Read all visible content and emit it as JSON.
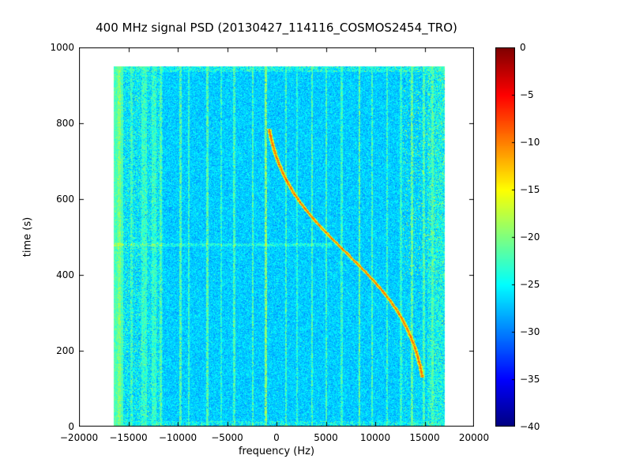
{
  "figure": {
    "background": "#ffffff",
    "text_color": "#000000"
  },
  "chart_data": {
    "type": "heatmap",
    "title": "400 MHz signal PSD (20130427_114116_COSMOS2454_TRO)",
    "xlabel": "frequency (Hz)",
    "ylabel": "time (s)",
    "xlim": [
      -20000,
      20000
    ],
    "ylim": [
      0,
      1000
    ],
    "xticks": [
      -20000,
      -15000,
      -10000,
      -5000,
      0,
      5000,
      10000,
      15000,
      20000
    ],
    "yticks": [
      0,
      200,
      400,
      600,
      800,
      1000
    ],
    "colormap": "jet",
    "grid": false,
    "colorbar": {
      "position": "right",
      "vmin": -40,
      "vmax": 0,
      "ticks": [
        0,
        -5,
        -10,
        -15,
        -20,
        -25,
        -30,
        -35,
        -40
      ]
    },
    "data_extent": {
      "freq_hz": [
        -16500,
        17000
      ],
      "time_s": [
        0,
        950
      ]
    },
    "noise_floor_db": -27,
    "bands": {
      "left_solid": {
        "freq_below": -15550,
        "level_db": -22,
        "density": 1.0
      },
      "left_speckle": {
        "freq_below": -11500,
        "level_db": -23.5,
        "density": 0.4
      },
      "right_mid_speckle": {
        "freq_above": 12500,
        "level_db": -23.5,
        "density": 0.12
      },
      "right_speckle": {
        "freq_above": 15300,
        "level_db": -23,
        "density": 0.55
      },
      "right_hot_speckle": {
        "freq_above": 12800,
        "time_above": 400,
        "level_db": -17.5,
        "density": 0.04
      },
      "top_speckle": {
        "time_above": 935,
        "level_db": -23.5,
        "density": 0.6
      },
      "bottom_speckle": {
        "time_below": 15,
        "level_db": -23.5,
        "density": 0.45
      }
    },
    "horizontal_line": {
      "time_s": 479,
      "boost_db": 3.5,
      "freq_max_hz": 5600
    },
    "rfi_lines": [
      {
        "freq_hz": -15950,
        "level_db": -20.0,
        "halfwidth_hz": 150
      },
      {
        "freq_hz": -14700,
        "level_db": -22.5,
        "halfwidth_hz": 120
      },
      {
        "freq_hz": -13400,
        "level_db": -22.8,
        "halfwidth_hz": 300
      },
      {
        "freq_hz": -12400,
        "level_db": -23.0,
        "halfwidth_hz": 200
      },
      {
        "freq_hz": -11700,
        "level_db": -22.0,
        "halfwidth_hz": 100
      },
      {
        "freq_hz": -9700,
        "level_db": -21.5,
        "halfwidth_hz": 120
      },
      {
        "freq_hz": -8900,
        "level_db": -22.5,
        "halfwidth_hz": 90
      },
      {
        "freq_hz": -7000,
        "level_db": -21.5,
        "halfwidth_hz": 110
      },
      {
        "freq_hz": -5600,
        "level_db": -23.0,
        "halfwidth_hz": 80
      },
      {
        "freq_hz": -4300,
        "level_db": -22.0,
        "halfwidth_hz": 100
      },
      {
        "freq_hz": -2400,
        "level_db": -21.8,
        "halfwidth_hz": 90
      },
      {
        "freq_hz": -1050,
        "level_db": -19.5,
        "halfwidth_hz": 120
      },
      {
        "freq_hz": 950,
        "level_db": -22.0,
        "halfwidth_hz": 90
      },
      {
        "freq_hz": 2100,
        "level_db": -23.0,
        "halfwidth_hz": 80
      },
      {
        "freq_hz": 3600,
        "level_db": -21.8,
        "halfwidth_hz": 100
      },
      {
        "freq_hz": 5050,
        "level_db": -22.0,
        "halfwidth_hz": 90
      },
      {
        "freq_hz": 6600,
        "level_db": -22.5,
        "halfwidth_hz": 90
      },
      {
        "freq_hz": 8400,
        "level_db": -20.8,
        "halfwidth_hz": 110
      },
      {
        "freq_hz": 9700,
        "level_db": -22.0,
        "halfwidth_hz": 90
      },
      {
        "freq_hz": 11200,
        "level_db": -22.5,
        "halfwidth_hz": 90
      },
      {
        "freq_hz": 12600,
        "level_db": -23.0,
        "halfwidth_hz": 80
      },
      {
        "freq_hz": 13700,
        "level_db": -21.0,
        "halfwidth_hz": 110
      },
      {
        "freq_hz": 14900,
        "level_db": -21.8,
        "halfwidth_hz": 100
      },
      {
        "freq_hz": 15800,
        "level_db": -22.0,
        "halfwidth_hz": 100
      }
    ],
    "doppler_track": {
      "label": "satellite Doppler S-curve",
      "level_db": -10,
      "halo_level_db": -16,
      "points": [
        {
          "t": 130,
          "f": 14790
        },
        {
          "t": 135,
          "f": 14750
        },
        {
          "t": 160,
          "f": 14550
        },
        {
          "t": 185,
          "f": 14290
        },
        {
          "t": 210,
          "f": 13990
        },
        {
          "t": 235,
          "f": 13620
        },
        {
          "t": 260,
          "f": 13200
        },
        {
          "t": 285,
          "f": 12690
        },
        {
          "t": 310,
          "f": 12100
        },
        {
          "t": 335,
          "f": 11420
        },
        {
          "t": 360,
          "f": 10660
        },
        {
          "t": 385,
          "f": 9820
        },
        {
          "t": 410,
          "f": 8920
        },
        {
          "t": 435,
          "f": 7970
        },
        {
          "t": 460,
          "f": 7000
        },
        {
          "t": 485,
          "f": 6030
        },
        {
          "t": 510,
          "f": 5080
        },
        {
          "t": 535,
          "f": 4180
        },
        {
          "t": 560,
          "f": 3340
        },
        {
          "t": 585,
          "f": 2580
        },
        {
          "t": 610,
          "f": 1900
        },
        {
          "t": 635,
          "f": 1320
        },
        {
          "t": 660,
          "f": 800
        },
        {
          "t": 685,
          "f": 380
        },
        {
          "t": 710,
          "f": 0
        },
        {
          "t": 735,
          "f": -290
        },
        {
          "t": 760,
          "f": -550
        },
        {
          "t": 785,
          "f": -750
        }
      ]
    },
    "ghost_tracks": [
      {
        "freq_offset_hz": -1800,
        "level_db": -24.5
      },
      {
        "freq_offset_hz": -3600,
        "level_db": -25.0
      }
    ]
  }
}
